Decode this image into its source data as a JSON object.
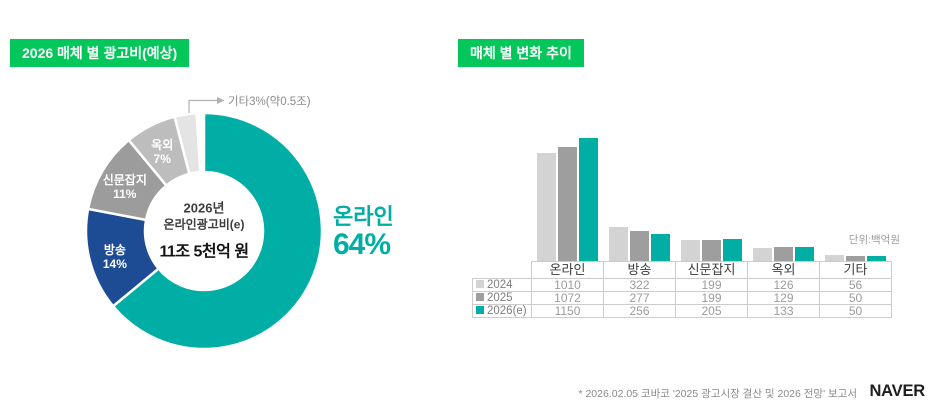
{
  "header": {
    "left_title": "2026 매체 별 광고비(예상)",
    "right_title": "매체 별 변화 추이"
  },
  "colors": {
    "badge_green": "#03C75A",
    "teal": "#00AEA6",
    "blue": "#1E4C94",
    "gray_mid": "#9C9C9C",
    "gray_light": "#BDBDBD",
    "gray_faint": "#E4E4E4",
    "bar_2024": "#D3D3D3",
    "bar_2025": "#9E9E9E"
  },
  "donut_center": {
    "line1": "2026년",
    "line2": "온라인광고비(e)",
    "amount": "11조 5천억 원"
  },
  "donut_highlight": {
    "name": "온라인",
    "value": "64%"
  },
  "donut_callout": "기타3%(약0.5조)",
  "unit_note": "단위:백억원",
  "footer": {
    "source": "* 2026.02.05 코바코 '2025 광고시장 결산 및 2026 전망' 보고서",
    "logo": "NAVER"
  },
  "chart_data": [
    {
      "type": "pie",
      "title": "2026 매체 별 광고비(예상)",
      "labels": [
        "온라인",
        "방송",
        "신문잡지",
        "옥외",
        "기타"
      ],
      "values": [
        64,
        14,
        11,
        7,
        3
      ],
      "unit": "%",
      "colors": [
        "#00AEA6",
        "#1E4C94",
        "#9C9C9C",
        "#BDBDBD",
        "#E4E4E4"
      ],
      "center_note": "2026년 온라인광고비(e) 11조 5천억 원",
      "annotation": "기타3%(약0.5조)"
    },
    {
      "type": "bar",
      "title": "매체 별 변화 추이",
      "categories": [
        "온라인",
        "방송",
        "신문잡지",
        "옥외",
        "기타"
      ],
      "series": [
        {
          "name": "2024",
          "color": "#D3D3D3",
          "values": [
            1010,
            322,
            199,
            126,
            56
          ]
        },
        {
          "name": "2025",
          "color": "#9E9E9E",
          "values": [
            1072,
            277,
            199,
            129,
            50
          ]
        },
        {
          "name": "2026(e)",
          "color": "#00AEA6",
          "values": [
            1150,
            256,
            205,
            133,
            50
          ]
        }
      ],
      "ylabel": "단위:백억원",
      "ylim": [
        0,
        1250
      ],
      "grid": false,
      "legend_position": "table-left"
    }
  ]
}
